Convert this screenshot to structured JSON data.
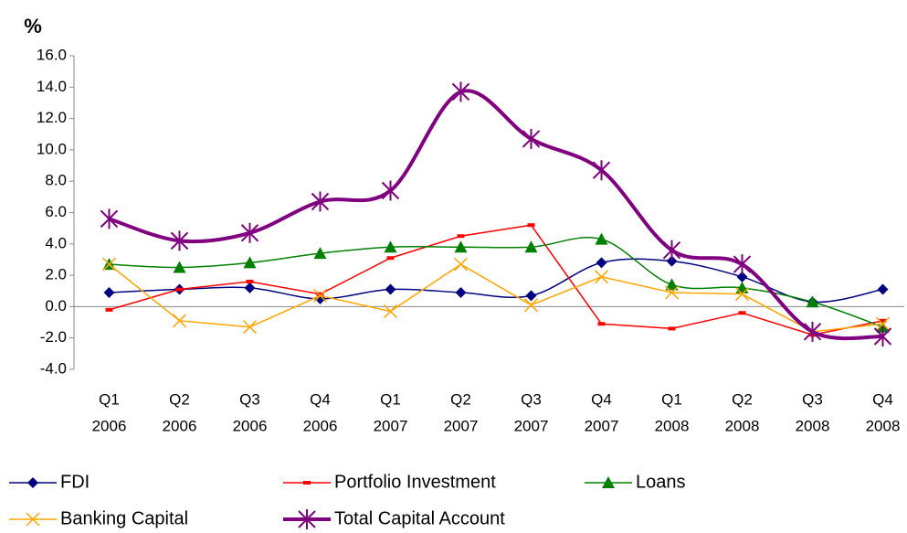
{
  "chart_data": {
    "type": "line",
    "y_label": "%",
    "categories": [
      [
        "Q1",
        "2006"
      ],
      [
        "Q2",
        "2006"
      ],
      [
        "Q3",
        "2006"
      ],
      [
        "Q4",
        "2006"
      ],
      [
        "Q1",
        "2007"
      ],
      [
        "Q2",
        "2007"
      ],
      [
        "Q3",
        "2007"
      ],
      [
        "Q4",
        "2007"
      ],
      [
        "Q1",
        "2008"
      ],
      [
        "Q2",
        "2008"
      ],
      [
        "Q3",
        "2008"
      ],
      [
        "Q4",
        "2008"
      ]
    ],
    "ylim": [
      -4,
      16
    ],
    "yticks": [
      {
        "value": -4,
        "label": "-4.0"
      },
      {
        "value": -2,
        "label": "-2.0"
      },
      {
        "value": 0,
        "label": "0.0"
      },
      {
        "value": 2,
        "label": "2.0"
      },
      {
        "value": 4,
        "label": "4.0"
      },
      {
        "value": 6,
        "label": "6.0"
      },
      {
        "value": 8,
        "label": "8.0"
      },
      {
        "value": 10,
        "label": "10.0"
      },
      {
        "value": 12,
        "label": "12.0"
      },
      {
        "value": 14,
        "label": "14.0"
      },
      {
        "value": 16,
        "label": "16.0"
      }
    ],
    "series": [
      {
        "name": "FDI",
        "color": "#000080",
        "marker": "diamond",
        "smooth": true,
        "values": [
          0.9,
          1.1,
          1.2,
          0.5,
          1.1,
          0.9,
          0.7,
          2.8,
          2.9,
          1.9,
          0.3,
          1.1
        ]
      },
      {
        "name": "Portfolio Investment",
        "color": "#ff0000",
        "marker": "dash",
        "smooth": false,
        "values": [
          -0.2,
          1.1,
          1.6,
          0.8,
          3.1,
          4.5,
          5.2,
          -1.1,
          -1.4,
          -0.4,
          -1.8,
          -0.9
        ]
      },
      {
        "name": "Loans",
        "color": "#008000",
        "marker": "triangle",
        "smooth": true,
        "values": [
          2.7,
          2.5,
          2.8,
          3.4,
          3.8,
          3.8,
          3.8,
          4.3,
          1.4,
          1.2,
          0.3,
          -1.3
        ]
      },
      {
        "name": "Banking Capital",
        "color": "#ffa500",
        "marker": "x",
        "smooth": false,
        "values": [
          2.7,
          -0.9,
          -1.3,
          0.7,
          -0.3,
          2.7,
          0.1,
          1.9,
          0.9,
          0.8,
          -1.6,
          -1.1
        ]
      },
      {
        "name": "Total Capital Account",
        "color": "#800080",
        "marker": "star",
        "smooth": true,
        "width": 4,
        "values": [
          5.6,
          4.2,
          4.7,
          6.7,
          7.4,
          13.7,
          10.7,
          8.7,
          3.6,
          2.7,
          -1.6,
          -1.9
        ]
      }
    ]
  }
}
